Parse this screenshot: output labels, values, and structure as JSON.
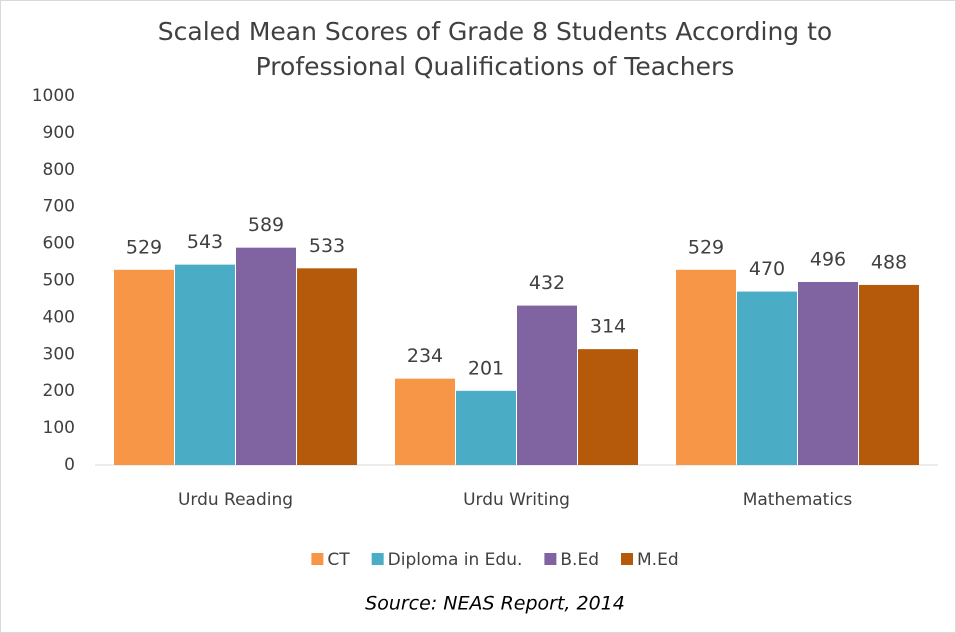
{
  "chart_data": {
    "type": "bar",
    "title": [
      "Scaled Mean Scores of Grade 8 Students According to",
      "Professional Qualifications of Teachers"
    ],
    "categories": [
      "Urdu Reading",
      "Urdu Writing",
      "Mathematics"
    ],
    "series": [
      {
        "name": "CT",
        "color": "#f79646",
        "values": [
          529,
          234,
          529
        ]
      },
      {
        "name": "Diploma in Edu.",
        "color": "#4bacc6",
        "values": [
          543,
          201,
          470
        ]
      },
      {
        "name": "B.Ed",
        "color": "#8064a2",
        "values": [
          589,
          432,
          496
        ]
      },
      {
        "name": "M.Ed",
        "color": "#b55a0b",
        "values": [
          533,
          314,
          488
        ]
      }
    ],
    "ylim": [
      0,
      1000
    ],
    "yticks": [
      0,
      100,
      200,
      300,
      400,
      500,
      600,
      700,
      800,
      900,
      1000
    ],
    "grid": false,
    "legend": "bottom",
    "annotation": "Source: NEAS Report, 2014"
  }
}
